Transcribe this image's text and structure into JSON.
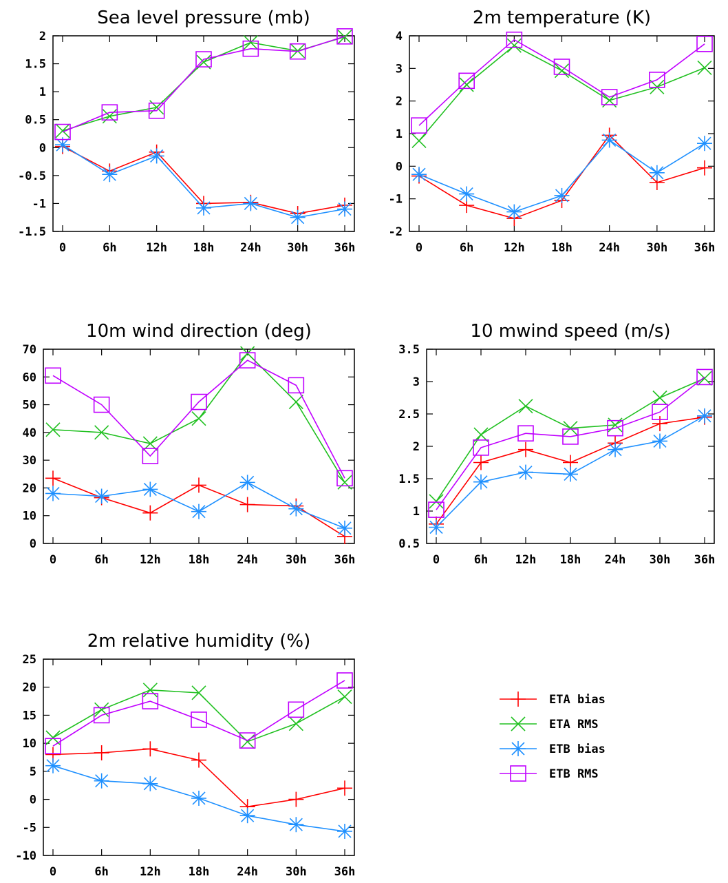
{
  "colors": {
    "ETA bias": "#ff0000",
    "ETA RMS": "#20c020",
    "ETB bias": "#1e90ff",
    "ETB RMS": "#c000ff"
  },
  "legend": {
    "items": [
      {
        "name": "ETA bias",
        "marker": "plus"
      },
      {
        "name": "ETA RMS",
        "marker": "cross"
      },
      {
        "name": "ETB bias",
        "marker": "star"
      },
      {
        "name": "ETB RMS",
        "marker": "square"
      }
    ]
  },
  "chart_data": [
    {
      "type": "line",
      "title": "Sea level pressure (mb)",
      "categories": [
        "0",
        "6h",
        "12h",
        "18h",
        "24h",
        "30h",
        "36h"
      ],
      "ylim": [
        -1.5,
        2
      ],
      "yticks": [
        -1.5,
        -1,
        -0.5,
        0,
        0.5,
        1,
        1.5,
        2
      ],
      "ytick_labels": [
        "-1.5",
        "-1",
        "-0.5",
        "0",
        "0.5",
        "1",
        "1.5",
        "2"
      ],
      "series": [
        {
          "name": "ETA bias",
          "values": [
            0.02,
            -0.42,
            -0.08,
            -1.0,
            -0.98,
            -1.18,
            -1.03
          ]
        },
        {
          "name": "ETA RMS",
          "values": [
            0.3,
            0.56,
            0.72,
            1.53,
            1.88,
            1.73,
            1.98
          ]
        },
        {
          "name": "ETB bias",
          "values": [
            0.05,
            -0.48,
            -0.15,
            -1.08,
            -1.0,
            -1.25,
            -1.1
          ]
        },
        {
          "name": "ETB RMS",
          "values": [
            0.28,
            0.63,
            0.66,
            1.58,
            1.77,
            1.72,
            1.99
          ]
        }
      ]
    },
    {
      "type": "line",
      "title": "2m temperature (K)",
      "categories": [
        "0",
        "6h",
        "12h",
        "18h",
        "24h",
        "30h",
        "36h"
      ],
      "ylim": [
        -2,
        4
      ],
      "yticks": [
        -2,
        -1,
        0,
        1,
        2,
        3,
        4
      ],
      "ytick_labels": [
        "-2",
        "-1",
        "0",
        "1",
        "2",
        "3",
        "4"
      ],
      "series": [
        {
          "name": "ETA bias",
          "values": [
            -0.3,
            -1.2,
            -1.6,
            -1.05,
            0.95,
            -0.5,
            -0.05
          ]
        },
        {
          "name": "ETA RMS",
          "values": [
            0.78,
            2.5,
            3.7,
            2.93,
            2.02,
            2.43,
            3.02
          ]
        },
        {
          "name": "ETB bias",
          "values": [
            -0.25,
            -0.85,
            -1.4,
            -0.9,
            0.8,
            -0.2,
            0.7
          ]
        },
        {
          "name": "ETB RMS",
          "values": [
            1.25,
            2.62,
            3.88,
            3.05,
            2.12,
            2.65,
            3.75
          ]
        }
      ]
    },
    {
      "type": "line",
      "title": "10m wind direction (deg)",
      "categories": [
        "0",
        "6h",
        "12h",
        "18h",
        "24h",
        "30h",
        "36h"
      ],
      "ylim": [
        0,
        70
      ],
      "yticks": [
        0,
        10,
        20,
        30,
        40,
        50,
        60,
        70
      ],
      "ytick_labels": [
        "0",
        "10",
        "20",
        "30",
        "40",
        "50",
        "60",
        "70"
      ],
      "series": [
        {
          "name": "ETA bias",
          "values": [
            23.5,
            16.5,
            11,
            21,
            14,
            13.5,
            2.5
          ]
        },
        {
          "name": "ETA RMS",
          "values": [
            41,
            40,
            36,
            45,
            68.5,
            51,
            22
          ]
        },
        {
          "name": "ETB bias",
          "values": [
            18,
            17,
            19.5,
            11.5,
            22,
            12.5,
            5.5
          ]
        },
        {
          "name": "ETB RMS",
          "values": [
            60.5,
            50,
            31.5,
            51,
            66,
            57,
            23.5
          ]
        }
      ]
    },
    {
      "type": "line",
      "title": "10 mwind speed (m/s)",
      "categories": [
        "0",
        "6h",
        "12h",
        "18h",
        "24h",
        "30h",
        "36h"
      ],
      "ylim": [
        0.5,
        3.5
      ],
      "yticks": [
        0.5,
        1,
        1.5,
        2,
        2.5,
        3,
        3.5
      ],
      "ytick_labels": [
        "0.5",
        "1",
        "1.5",
        "2",
        "2.5",
        "3",
        "3.5"
      ],
      "series": [
        {
          "name": "ETA bias",
          "values": [
            0.8,
            1.75,
            1.95,
            1.75,
            2.05,
            2.35,
            2.45
          ]
        },
        {
          "name": "ETA RMS",
          "values": [
            1.15,
            2.18,
            2.62,
            2.28,
            2.33,
            2.75,
            3.05
          ]
        },
        {
          "name": "ETB bias",
          "values": [
            0.75,
            1.45,
            1.6,
            1.57,
            1.95,
            2.08,
            2.47
          ]
        },
        {
          "name": "ETB RMS",
          "values": [
            1.02,
            1.98,
            2.2,
            2.15,
            2.28,
            2.53,
            3.07
          ]
        }
      ]
    },
    {
      "type": "line",
      "title": "2m relative humidity (%)",
      "categories": [
        "0",
        "6h",
        "12h",
        "18h",
        "24h",
        "30h",
        "36h"
      ],
      "ylim": [
        -10,
        25
      ],
      "yticks": [
        -10,
        -5,
        0,
        5,
        10,
        15,
        20,
        25
      ],
      "ytick_labels": [
        "-10",
        "-5",
        "0",
        "5",
        "10",
        "15",
        "20",
        "25"
      ],
      "series": [
        {
          "name": "ETA bias",
          "values": [
            8,
            8.3,
            9,
            7,
            -1.3,
            0,
            2
          ]
        },
        {
          "name": "ETA RMS",
          "values": [
            11,
            16,
            19.5,
            19,
            10.3,
            13.5,
            18.3
          ]
        },
        {
          "name": "ETB bias",
          "values": [
            6,
            3.3,
            2.8,
            0.2,
            -2.9,
            -4.5,
            -5.7
          ]
        },
        {
          "name": "ETB RMS",
          "values": [
            9.5,
            15,
            17.5,
            14.2,
            10.5,
            16,
            21.2
          ]
        }
      ]
    }
  ]
}
